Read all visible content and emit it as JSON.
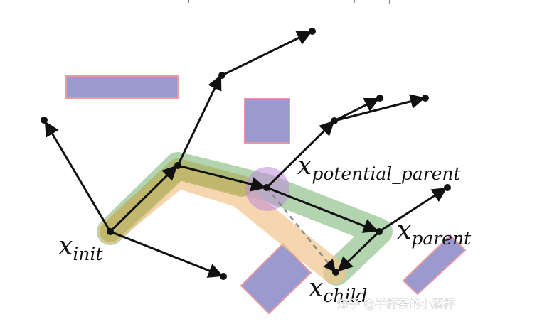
{
  "labels": {
    "init": {
      "main": "x",
      "sub": "init"
    },
    "potential_parent": {
      "main": "x",
      "sub": "potential_parent"
    },
    "parent": {
      "main": "x",
      "sub": "parent"
    },
    "child": {
      "main": "x",
      "sub": "child"
    }
  },
  "watermark": "知乎 @半杯茶的小酒杯",
  "colors": {
    "obstacle_fill": "#9a9ad0",
    "obstacle_stroke": "#e79aa0",
    "edge": "#111111",
    "path_green": "#7fb879",
    "path_orange": "#f2c58c",
    "path_olive": "#a8a84a",
    "circle": "#c08ad8"
  }
}
